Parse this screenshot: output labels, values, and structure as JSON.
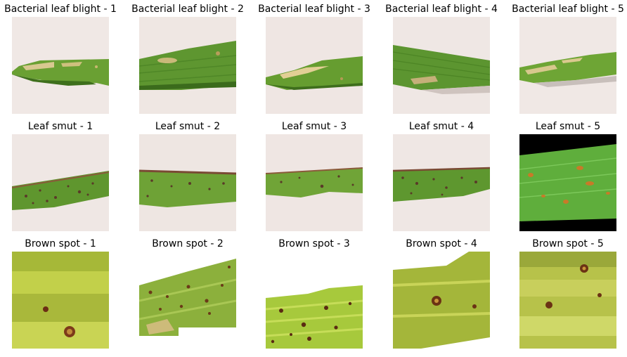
{
  "rows": [
    {
      "name": "Bacterial leaf blight",
      "titles": [
        "Bacterial leaf blight - 1",
        "Bacterial leaf blight - 2",
        "Bacterial leaf blight - 3",
        "Bacterial leaf blight - 4",
        "Bacterial leaf blight - 5"
      ]
    },
    {
      "name": "Leaf smut",
      "titles": [
        "Leaf smut - 1",
        "Leaf smut - 2",
        "Leaf smut - 3",
        "Leaf smut - 4",
        "Leaf smut - 5"
      ]
    },
    {
      "name": "Brown spot",
      "titles": [
        "Brown spot - 1",
        "Brown spot - 2",
        "Brown spot - 3",
        "Brown spot - 4",
        "Brown spot - 5"
      ]
    }
  ],
  "colors": {
    "bg_cream": "#efe7e4",
    "leaf_green": "#5f9a2e",
    "leaf_dark": "#3f7a22",
    "lesion_tan": "#d9c58e",
    "smut_dot": "#5a3a2a",
    "brown_spot": "#7a3a1a",
    "bright_yellow_green": "#c9d94a"
  }
}
